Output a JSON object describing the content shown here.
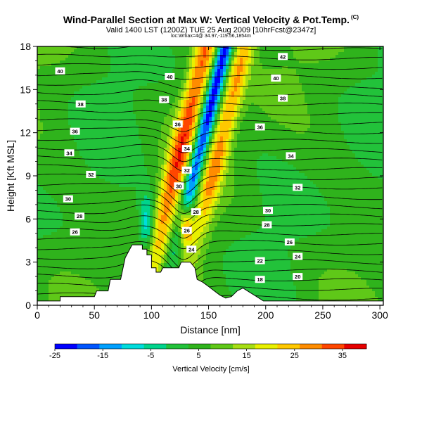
{
  "header": {
    "title": "Wind-Parallel Section at Max W: Vertical Velocity & Pot.Temp.",
    "copyright": "(C)",
    "valid_line": "Valid 1400 LST (1200Z) TUE 25 Aug 2009 [10hrFcst@2347z]",
    "location_line": "loc:Wmax=4@ 34.97,-119.56,1854m"
  },
  "chart_data": {
    "type": "heatmap",
    "xlabel": "Distance [nm]",
    "ylabel": "Height [Kft MSL]",
    "xlim": [
      0,
      303
    ],
    "ylim": [
      0,
      18
    ],
    "x_ticks": [
      "0",
      "50",
      "100",
      "150",
      "200",
      "250",
      "300"
    ],
    "y_ticks": [
      "0",
      "3",
      "6",
      "9",
      "12",
      "15",
      "18"
    ],
    "colorbar": {
      "label": "Vertical Velocity [cm/s]",
      "min": -25,
      "max": 40,
      "tick_labels": [
        "-25",
        "-15",
        "-5",
        "5",
        "15",
        "25",
        "35"
      ],
      "colors": [
        "#0000ff",
        "#0055ff",
        "#00a0ff",
        "#00dcdc",
        "#00d48c",
        "#22c23a",
        "#2fb31c",
        "#5fc818",
        "#a6de14",
        "#e8f000",
        "#ffc800",
        "#ff8c00",
        "#ff4600",
        "#e60000"
      ]
    },
    "terrain_top_kft": [
      [
        0,
        0.3
      ],
      [
        20,
        0.3
      ],
      [
        20,
        0.6
      ],
      [
        50,
        0.6
      ],
      [
        52,
        1.0
      ],
      [
        62,
        1.0
      ],
      [
        64,
        1.8
      ],
      [
        73,
        1.8
      ],
      [
        77,
        3.3
      ],
      [
        83,
        4.2
      ],
      [
        92,
        4.2
      ],
      [
        92,
        3.9
      ],
      [
        96,
        3.9
      ],
      [
        96,
        3.5
      ],
      [
        100,
        3.5
      ],
      [
        100,
        2.6
      ],
      [
        104,
        2.6
      ],
      [
        104,
        2.3
      ],
      [
        108,
        2.3
      ],
      [
        110,
        2.6
      ],
      [
        124,
        2.6
      ],
      [
        126,
        3.0
      ],
      [
        134,
        3.0
      ],
      [
        138,
        2.6
      ],
      [
        140,
        1.8
      ],
      [
        145,
        1.6
      ],
      [
        150,
        1.3
      ],
      [
        155,
        1.0
      ],
      [
        160,
        0.7
      ],
      [
        165,
        0.5
      ],
      [
        170,
        0.6
      ],
      [
        175,
        1.0
      ],
      [
        180,
        1.2
      ],
      [
        186,
        0.9
      ],
      [
        192,
        0.6
      ],
      [
        198,
        0.3
      ],
      [
        303,
        0.3
      ]
    ],
    "updraft_core_max_cm_s": 40,
    "downdraft_core_min_cm_s": -25,
    "pot_temp_labels": [
      {
        "x": 20,
        "y": 16.3,
        "text": "40"
      },
      {
        "x": 38,
        "y": 14.0,
        "text": "38"
      },
      {
        "x": 33,
        "y": 12.1,
        "text": "36"
      },
      {
        "x": 28,
        "y": 10.6,
        "text": "34"
      },
      {
        "x": 47,
        "y": 9.1,
        "text": "32"
      },
      {
        "x": 27,
        "y": 7.4,
        "text": "30"
      },
      {
        "x": 37,
        "y": 6.2,
        "text": "28"
      },
      {
        "x": 33,
        "y": 5.1,
        "text": "26"
      },
      {
        "x": 116,
        "y": 15.9,
        "text": "40"
      },
      {
        "x": 111,
        "y": 14.3,
        "text": "38"
      },
      {
        "x": 123,
        "y": 12.6,
        "text": "36"
      },
      {
        "x": 131,
        "y": 10.9,
        "text": "34"
      },
      {
        "x": 131,
        "y": 9.4,
        "text": "32"
      },
      {
        "x": 124,
        "y": 8.3,
        "text": "30"
      },
      {
        "x": 139,
        "y": 6.5,
        "text": "28"
      },
      {
        "x": 131,
        "y": 5.2,
        "text": "26"
      },
      {
        "x": 135,
        "y": 3.9,
        "text": "24"
      },
      {
        "x": 215,
        "y": 17.3,
        "text": "42"
      },
      {
        "x": 209,
        "y": 15.8,
        "text": "40"
      },
      {
        "x": 215,
        "y": 14.4,
        "text": "38"
      },
      {
        "x": 195,
        "y": 12.4,
        "text": "36"
      },
      {
        "x": 222,
        "y": 10.4,
        "text": "34"
      },
      {
        "x": 228,
        "y": 8.2,
        "text": "32"
      },
      {
        "x": 202,
        "y": 6.6,
        "text": "30"
      },
      {
        "x": 201,
        "y": 5.6,
        "text": "28"
      },
      {
        "x": 221,
        "y": 4.4,
        "text": "26"
      },
      {
        "x": 228,
        "y": 3.4,
        "text": "24"
      },
      {
        "x": 195,
        "y": 3.1,
        "text": "22"
      },
      {
        "x": 228,
        "y": 2.0,
        "text": "20"
      },
      {
        "x": 195,
        "y": 1.8,
        "text": "18"
      }
    ]
  }
}
